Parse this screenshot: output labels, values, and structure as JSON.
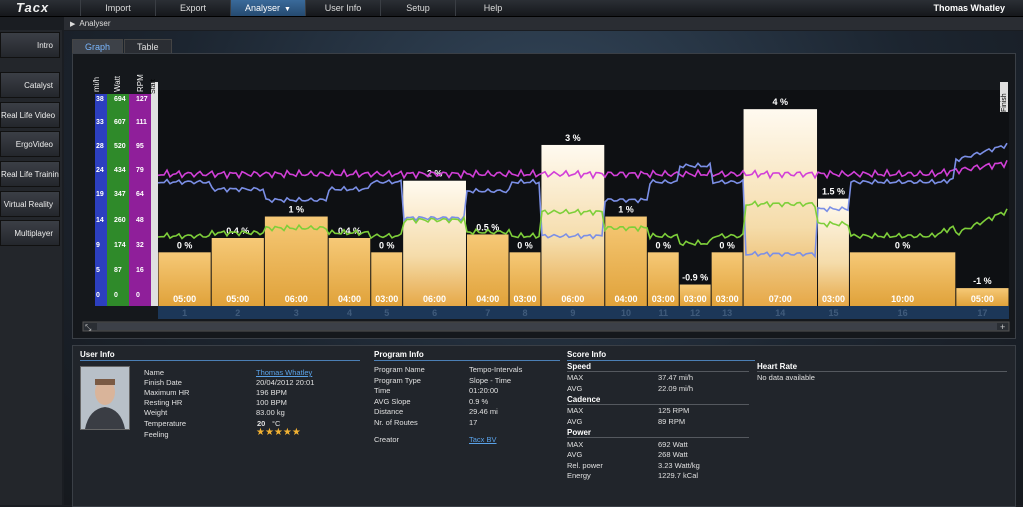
{
  "app": {
    "logo": "Tacx",
    "user": "Thomas Whatley"
  },
  "menu": [
    {
      "label": "Import"
    },
    {
      "label": "Export"
    },
    {
      "label": "Analyser",
      "active": true
    },
    {
      "label": "User Info"
    },
    {
      "label": "Setup"
    },
    {
      "label": "Help"
    }
  ],
  "breadcrumb": "Analyser",
  "sidebar": [
    "Intro",
    "Catalyst",
    "Real Life Video",
    "ErgoVideo",
    "Real Life Training",
    "Virtual Reality",
    "Multiplayer"
  ],
  "tabs": [
    {
      "label": "Graph",
      "active": true
    },
    {
      "label": "Table"
    }
  ],
  "chart_data": {
    "type": "bar",
    "axes": {
      "mph": {
        "label": "mi/h",
        "ticks": [
          "0",
          "5",
          "9",
          "14",
          "19",
          "24",
          "28",
          "33",
          "38"
        ]
      },
      "watt": {
        "label": "Watt",
        "ticks": [
          "0",
          "87",
          "174",
          "260",
          "347",
          "434",
          "520",
          "607",
          "694"
        ]
      },
      "rpm": {
        "label": "RPM",
        "ticks": [
          "0",
          "16",
          "32",
          "48",
          "64",
          "79",
          "95",
          "111",
          "127"
        ]
      }
    },
    "markers": {
      "start": "Start",
      "finish": "Finish"
    },
    "segments": [
      {
        "n": "1",
        "slope": "0 %",
        "time": "05:00",
        "slope_value": 0,
        "duration": 5
      },
      {
        "n": "2",
        "slope": "0.4 %",
        "time": "05:00",
        "slope_value": 0.4,
        "duration": 5
      },
      {
        "n": "3",
        "slope": "1 %",
        "time": "06:00",
        "slope_value": 1,
        "duration": 6
      },
      {
        "n": "4",
        "slope": "0.4 %",
        "time": "04:00",
        "slope_value": 0.4,
        "duration": 4
      },
      {
        "n": "5",
        "slope": "0 %",
        "time": "03:00",
        "slope_value": 0,
        "duration": 3
      },
      {
        "n": "6",
        "slope": "2 %",
        "time": "06:00",
        "slope_value": 2,
        "duration": 6
      },
      {
        "n": "7",
        "slope": "0.5 %",
        "time": "04:00",
        "slope_value": 0.5,
        "duration": 4
      },
      {
        "n": "8",
        "slope": "0 %",
        "time": "03:00",
        "slope_value": 0,
        "duration": 3
      },
      {
        "n": "9",
        "slope": "3 %",
        "time": "06:00",
        "slope_value": 3,
        "duration": 6
      },
      {
        "n": "10",
        "slope": "1 %",
        "time": "04:00",
        "slope_value": 1,
        "duration": 4
      },
      {
        "n": "11",
        "slope": "0 %",
        "time": "03:00",
        "slope_value": 0,
        "duration": 3
      },
      {
        "n": "12",
        "slope": "-0.9 %",
        "time": "03:00",
        "slope_value": -0.9,
        "duration": 3
      },
      {
        "n": "13",
        "slope": "0 %",
        "time": "03:00",
        "slope_value": 0,
        "duration": 3
      },
      {
        "n": "14",
        "slope": "4 %",
        "time": "07:00",
        "slope_value": 4,
        "duration": 7
      },
      {
        "n": "15",
        "slope": "1.5 %",
        "time": "03:00",
        "slope_value": 1.5,
        "duration": 3
      },
      {
        "n": "16",
        "slope": "0 %",
        "time": "10:00",
        "slope_value": 0,
        "duration": 10
      },
      {
        "n": "17",
        "slope": "-1 %",
        "time": "05:00",
        "slope_value": -1,
        "duration": 5
      }
    ],
    "series": [
      {
        "name": "RPM",
        "color": "#d23fd8"
      },
      {
        "name": "Speed",
        "color": "#7b8fe6"
      },
      {
        "name": "Power",
        "color": "#7ecf3a"
      }
    ]
  },
  "user_info": {
    "title": "User Info",
    "rows": [
      {
        "label": "Name",
        "value": "Thomas Whatley",
        "link": true
      },
      {
        "label": "Finish Date",
        "value": "20/04/2012 20:01"
      },
      {
        "label": "Maximum HR",
        "value": "196 BPM"
      },
      {
        "label": "Resting HR",
        "value": "100 BPM"
      },
      {
        "label": "Weight",
        "value": "83.00 kg"
      },
      {
        "label": "Temperature",
        "value": "20",
        "unit": "°C"
      },
      {
        "label": "Feeling",
        "value": "★★★★★"
      }
    ]
  },
  "program_info": {
    "title": "Program Info",
    "rows": [
      {
        "label": "Program Name",
        "value": "Tempo-Intervals"
      },
      {
        "label": "Program Type",
        "value": "Slope - Time"
      },
      {
        "label": "Time",
        "value": "01:20:00"
      },
      {
        "label": "AVG Slope",
        "value": "0.9 %"
      },
      {
        "label": "Distance",
        "value": "29.46 mi"
      },
      {
        "label": "Nr. of Routes",
        "value": "17"
      },
      {
        "label": "Creator",
        "value": "Tacx BV",
        "link": true
      }
    ]
  },
  "score_info": {
    "title": "Score Info",
    "groups": [
      {
        "name": "Speed",
        "rows": [
          {
            "label": "MAX",
            "value": "37.47 mi/h"
          },
          {
            "label": "AVG",
            "value": "22.09 mi/h"
          }
        ]
      },
      {
        "name": "Cadence",
        "rows": [
          {
            "label": "MAX",
            "value": "125 RPM"
          },
          {
            "label": "AVG",
            "value": "89 RPM"
          }
        ]
      },
      {
        "name": "Power",
        "rows": [
          {
            "label": "MAX",
            "value": "692 Watt"
          },
          {
            "label": "AVG",
            "value": "268 Watt"
          },
          {
            "label": "Rel. power",
            "value": "3.23 Watt/kg"
          },
          {
            "label": "Energy",
            "value": "1229.7 kCal"
          }
        ]
      }
    ]
  },
  "heart_rate": {
    "title": "Heart Rate",
    "text": "No data available"
  }
}
